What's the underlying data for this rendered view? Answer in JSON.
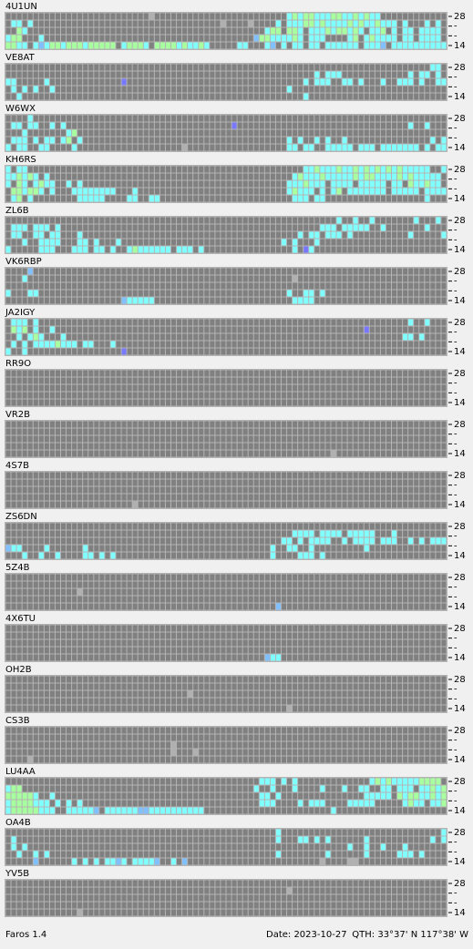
{
  "palette": {
    ".": "#808080",
    "l": "#b0b0b0",
    "c": "#80ffff",
    "g": "#a8ffa0",
    "s": "#80c0ff",
    "b": "#7878ff"
  },
  "band_labels": [
    "28",
    "-",
    "-",
    "14"
  ],
  "stations": [
    {
      "name": "4U1UN",
      "rows": [
        ".......... .......... ......l... .......... .......... .cgcggcccg gccgcgcc.. ..........",
        ".cc.c..... .......... .......... .........l ....l....c .cccggcgcc ccgcgccgcc c.c...c.c.",
        "..gc...... .......... .......... .......... .......cgg .ggc.cccgc ggcgc.ccg. c.cc.cccc.",
        "cgg...c... .......... .......... .......... .....sggcc ccgc.ccc.. ..cg.cgccc c.cc.cccc.",
        "ggcc.cscgg cgggcggggg .cgggc.ggg gcgccgc... ..cc...cs. c.cc.cc.cc cccc.cccs. cccccccccc"
      ]
    },
    {
      "name": "VE8AT",
      "rows": [
        ".......... .......... .......... .......... .......... .......... .......... .......cc.",
        ".......... .......... .......... .......... .......... ......c.cc c......... ...c.cc.c.",
        "cc.....c.. .......... .b........ .......... .......... ....c.ccc. .cc.c...c. .ccc.c..cc",
        ".c.c.c..c. .......... .......... .......... .......... .c........ .......... ..........",
        "..c....... .......... .......... .......... .......... ....c..... .......... .........."
      ]
    },
    {
      "name": "W6WX",
      "rows": [
        "....c..... .......... .......... .......... .......... .......... .......... ..........",
        ".cc.cc..c. c......... .......... .......... .b........ .......... .......... ...c..c...",
        "...c...... .cg....... .......... .......... .......... .......... .......... ..........",
        ".ccc.c.cc. cg.c...... .......... .......... .......... .c.c..c.c. .c........ .......c.c",
        "c.cc..cc.. ..c....... .......... ..l....... .......... .cc.cc..cc ccc.ccc.cc ccccc.c.cc"
      ]
    },
    {
      "name": "KH6RS",
      "rows": [
        "c.cc...... .......... .......... .......... .......... ....ccgccc gccgcgcgcg cgccccc..c",
        "ccgcgc.c.. .......... .......... .......... .......... ..cgcccgcc cccgcggccc cgcgccccc.",
        "c.gc.cgcc. .c.c...... .......... .......... .......... .cccgccc.c ccc.ccccc. cc.gccgcc.",
        ".ggcggc.c. ..cccccccc ...c...... .......... .......... .cgccc.c.c g.ccccccc. ccccc.cccc",
        ".cg.c..... ...ccccc.. ..cc..cc.. .......... .......... ..ccc.cc.. .......... ......c..."
      ]
    },
    {
      "name": "ZL6B",
      "rows": [
        ".......... .......... .......... .......... .......... .......... c..c..c... ....c...c.",
        ".ccc.ccc.c .......... .......... .......... .......... .......ccc .ccccc..c. ......c...",
        ".cc..cc.cc ...c...... .......... .......... .......... ...c.cc.cc c.c....... ...c.....c",
        "...c..cccc ...cc.c... c......... .......... .......... c.c...c... .......... ..........",
        "c.....ccc. ..ccc.cc.c ..cgcccccc .ccc.c.... .......... ..c.bc.... .......... .........."
      ]
    },
    {
      "name": "VK6RBP",
      "rows": [
        "....s..... .......... .......... .......... .......... .......... .......... ..........",
        "...c...... .......... .......... .......... .......... ..l....... .......... ..........",
        ".......... .......... .......... .......... .......... .......... .......... ..........",
        "c...cc.... .......... .......... .......... .......... .c..cc.c.. .......... ..........",
        ".......... .......... .sccccc... .......... .......... ..cccc.... .......... .........."
      ]
    },
    {
      "name": "JA2IGY",
      "rows": [
        ".ccc.c.... .......... .......... .......... .......... .......... .......... ...c..c...",
        ".gcg.c..c. .......... .......... .......... .......... .......... .....b.... ..........",
        "..c.cgc... c......... .......... .......... .......... .......... .......... ..cc.c....",
        ".c.c.ccccg ccc.cc...c .......... .......... .......... .......... .......... ..........",
        "c..c...... .......... .b........ .......... .......... .......... .......... .........."
      ]
    },
    {
      "name": "RR9O",
      "rows": [
        ".......... .......... .......... .......... .......... .......... .......... ..........",
        ".......... .......... .......... .......... .......... .......... .......... ..........",
        ".......... .......... .......... .......... .......... .......... .......... ..........",
        ".......... .......... .......... .......... .......... .......... .......... ..........",
        ".......... .......... .......... .......... .......... .......... .......... .........."
      ]
    },
    {
      "name": "VR2B",
      "rows": [
        ".......... .......... .......... .......... .......... .......... .......... ..........",
        ".......... .......... .......... .......... .......... .......... .......... ..........",
        ".......... .......... .......... .......... .......... .......... .......... ..........",
        ".......... .......... .......... .......... .......... .......... .......... ..........",
        ".......... .......... .......... .......... .......... .........l .......... .........."
      ]
    },
    {
      "name": "4S7B",
      "rows": [
        ".......... .......... .......... .......... .......... .......... .......... ..........",
        ".......... .......... .......... .......... .......... .......... .......... ..........",
        ".......... .......... .......... .......... .......... .......... .......... ..........",
        ".......... .......... .......... .......... .......... .......... .......... ..........",
        ".......... .......... ...l...... .......... .......... .......... .......... .........."
      ]
    },
    {
      "name": "ZS6DN",
      "rows": [
        ".......... .......... .......... .......... .......... .......... .......... ..........",
        ".......... .......... .......... .......... .......... ..cccc.ccc c.ccccc... c.........",
        ".......... .......... .......... .......... .......... cc.c.cccc. .c.cccc.cc c..c.c.ccc",
        "scc....c.. ....c..... .......... .......... ........c. .cc..c.... .....c.... ..........",
        "...c..c..c ....cc.c.c .......... .......... ........c. ...ccc.c.. .......... .........."
      ]
    },
    {
      "name": "5Z4B",
      "rows": [
        ".......... .......... .......... .......... .......... .......... .......... ..........",
        ".......... .......... .......... .......... .......... .......... .......... ..........",
        ".......... ...l...... .......... .......... .......... .......... .......... ..........",
        ".......... .......... .......... .......... .......... .......... .......... ..........",
        ".......... .......... .......... .......... .........s .......... .......... .........."
      ]
    },
    {
      "name": "4X6TU",
      "rows": [
        ".......... .......... .......... .......... .......... .......... .......... ..........",
        ".......... .......... .......... .......... .......... .......... .......... ..........",
        ".......... .......... .......... .......... .......... .......... .......... ..........",
        ".......... .......... .......... .......... .......... .......... .......... ..........",
        ".......... .......... .......... .......... .......scc .......... .......... .........."
      ]
    },
    {
      "name": "OH2B",
      "rows": [
        ".......... .......... .......... .......... .......... .......... .......... ..........",
        ".......... .......... .......... .......... .......... .......... .......... ..........",
        ".......... .......... .......... ...l...... .......... .......... .......... ..........",
        ".......... .......... .......... .......... .......... .......... .......... ..........",
        ".......... .......... .......... .......... .......... .l........ .......... .........."
      ]
    },
    {
      "name": "CS3B",
      "rows": [
        ".......... .......... .......... .......... .......... .......... .......... ..........",
        ".......... .......... .......... .......... .......... .......... .......... ..........",
        ".......... .......... .......... l......... .......... .......... .......... ..........",
        ".......... .......... .......... l...l..... .......... .......... .......... ..........",
        "....l..... .......... .......... .......... .......... .......... .......... .........."
      ]
    },
    {
      "name": "LU4AA",
      "rows": [
        ".......... .......... .......... .......... ......ccc. c.c....... ......cgcg cccccgggg.",
        "cgg....... .......... .......... .......... .....c..c. ..c....c.. .c..cc..cc .ccc.ccgcg",
        "gggggc..c. .......... .......... .......... ......cc.c .......... .....ccccc .gcggccgcg",
        "cggggccc.c .c.c...... .......... .......... ......ccc. ...c.ccc.. ..ccccc... ..cgcc.ccg",
        "cgggggccc. .cccccs.cc ccccsscccc cccccc.... .......... .........c .......... .........."
      ]
    },
    {
      "name": "OA4B",
      "rows": [
        ".......... .......... .......... .......... .........c .......... .......... .........c",
        ".c........ .......... .......... .......... .........c ...cc.c.c. .....c.... .......c.c",
        ".c.c...... .......... .......... .......... .......... .......... ..c..c..c. ..c.......",
        "..c..c.c.. .......... .......... .......... .........c ........c. .....c.... .ccc.c....",
        ".....s.... ..c.c.c.cc sc.ccccs.. c.s....... .......... .......l.. ..ll...... .........."
      ]
    },
    {
      "name": "YV5B",
      "rows": [
        ".......... .......... .......... .......... .......... .......... .......... ..........",
        ".......... .......... .......... .......... .......... .l........ .......... ..........",
        ".......... .......... .......... .......... .......... .......... .......... ..........",
        ".......... .......... .......... .......... .......... .......... .......... ..........",
        ".......... ...l...... .......... .......... .......... .......... .......... .........."
      ]
    }
  ],
  "footer": {
    "app": "Faros 1.4",
    "date": "Date: 2023-10-27",
    "qth": "QTH: 33°37' N  117°38' W"
  }
}
